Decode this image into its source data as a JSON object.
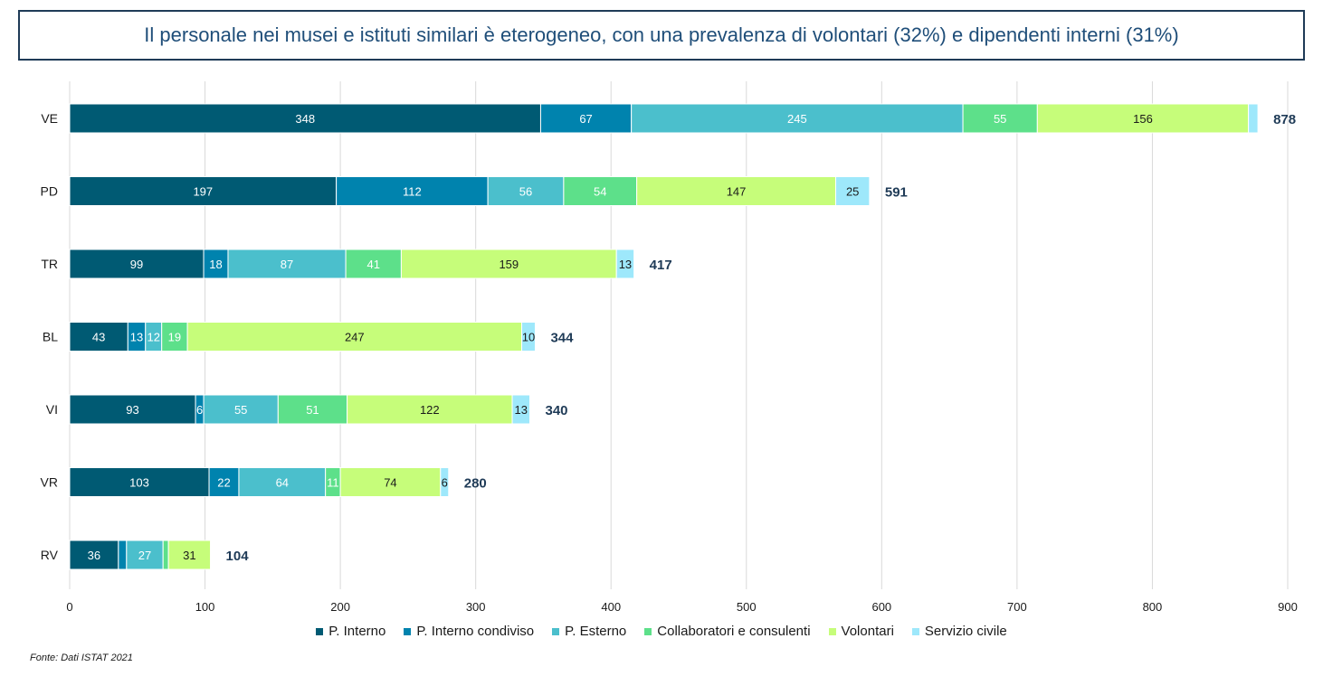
{
  "title": "Il personale nei musei e istituti similari è eterogeneo, con una prevalenza di volontari (32%) e dipendenti interni (31%)",
  "source": "Fonte: Dati ISTAT 2021",
  "chart_data": {
    "type": "bar",
    "orientation": "horizontal",
    "stacked": true,
    "categories": [
      "VE",
      "PD",
      "TR",
      "BL",
      "VI",
      "VR",
      "RV"
    ],
    "series": [
      {
        "name": "P. Interno",
        "color": "#005a73",
        "values": [
          348,
          197,
          99,
          43,
          93,
          103,
          36
        ]
      },
      {
        "name": "P. Interno condiviso",
        "color": "#0083ae",
        "values": [
          67,
          112,
          18,
          13,
          6,
          22,
          6
        ]
      },
      {
        "name": "P. Esterno",
        "color": "#4bbfcc",
        "values": [
          245,
          56,
          87,
          12,
          55,
          64,
          27
        ]
      },
      {
        "name": "Collaboratori e consulenti",
        "color": "#5de08a",
        "values": [
          55,
          54,
          41,
          19,
          51,
          11,
          4
        ]
      },
      {
        "name": "Volontari",
        "color": "#c6fd7a",
        "values": [
          156,
          147,
          159,
          247,
          122,
          74,
          31
        ]
      },
      {
        "name": "Servizio civile",
        "color": "#9ee8fb",
        "values": [
          7,
          25,
          13,
          10,
          13,
          6,
          0
        ]
      }
    ],
    "segment_labels": [
      [
        "348",
        "67",
        "245",
        "55",
        "156",
        ""
      ],
      [
        "197",
        "112",
        "56",
        "54",
        "147",
        "25"
      ],
      [
        "99",
        "18",
        "87",
        "41",
        "159",
        "13"
      ],
      [
        "43",
        "13",
        "12",
        "19",
        "247",
        "10"
      ],
      [
        "93",
        "6",
        "55",
        "51",
        "122",
        "13"
      ],
      [
        "103",
        "22",
        "64",
        "11",
        "74",
        "6"
      ],
      [
        "36",
        "",
        "27",
        "",
        "31",
        ""
      ]
    ],
    "totals": [
      878,
      591,
      417,
      344,
      340,
      280,
      104
    ],
    "xlim": [
      0,
      900
    ],
    "xticks": [
      0,
      100,
      200,
      300,
      400,
      500,
      600,
      700,
      800,
      900
    ],
    "grid": true,
    "legend_position": "bottom"
  }
}
